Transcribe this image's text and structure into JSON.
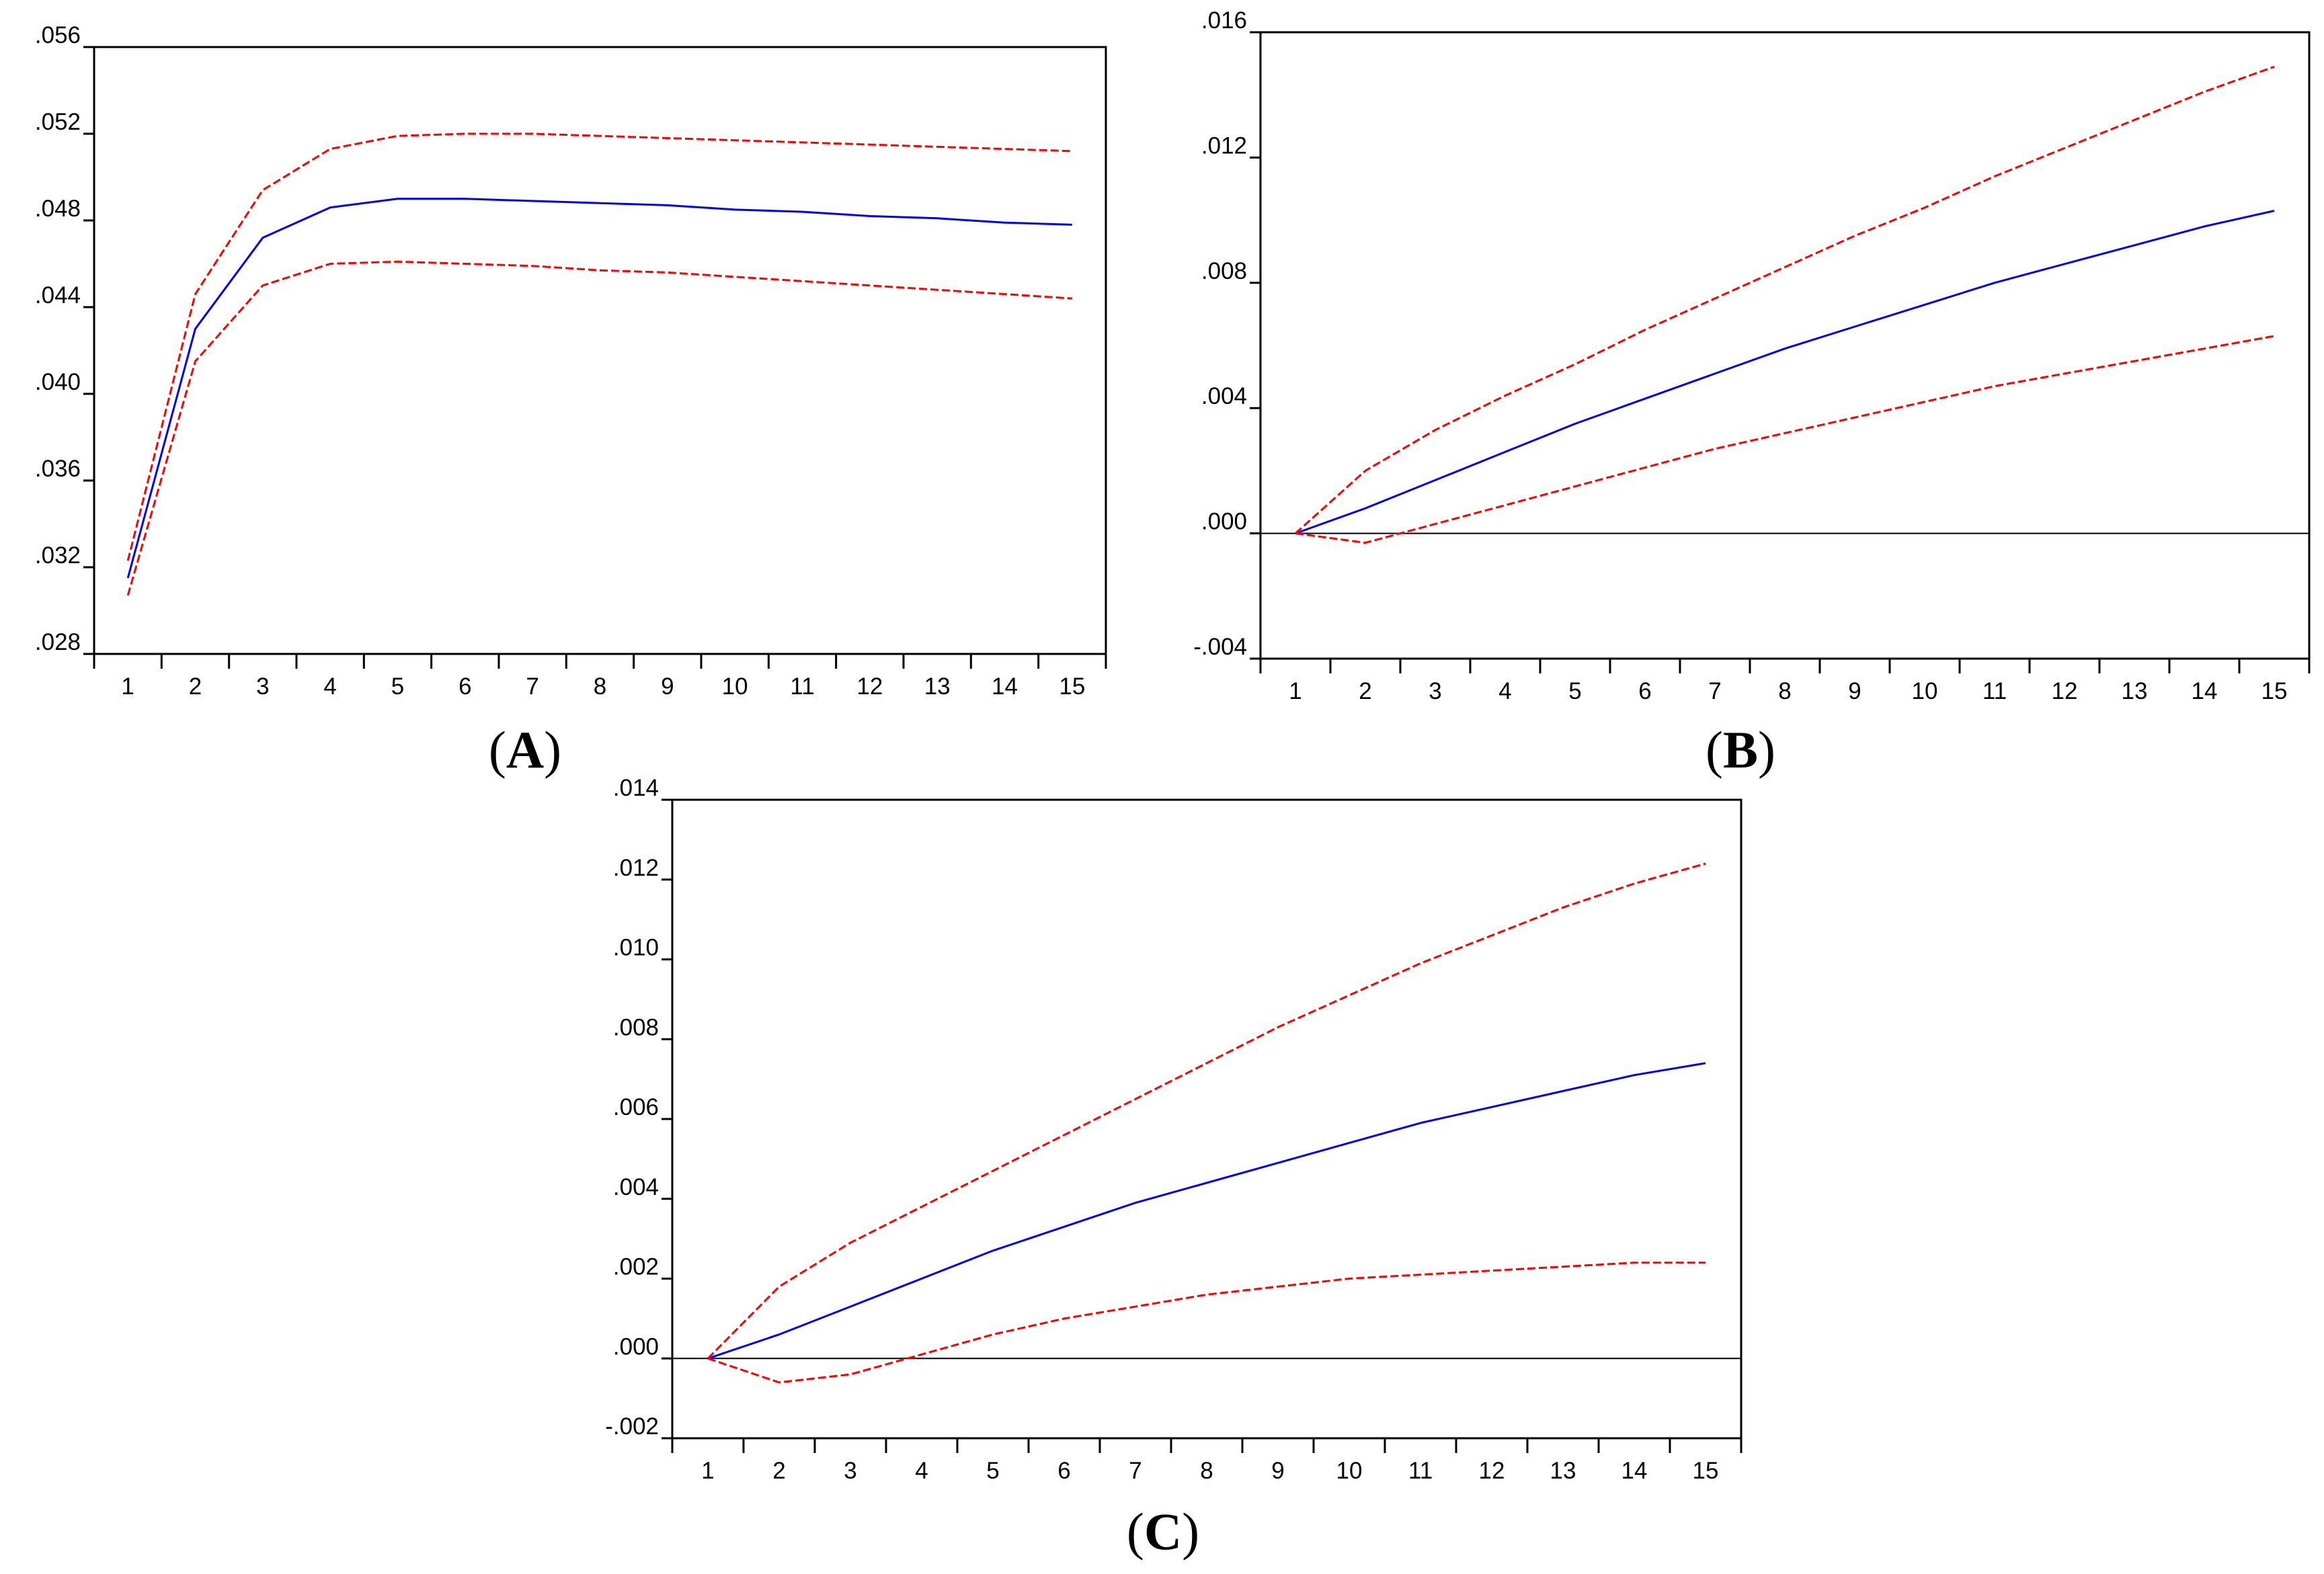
{
  "colors": {
    "response": "#0000ff",
    "band": "#ff0000",
    "axis": "#000000",
    "zero_line": "#000000"
  },
  "chart_data": [
    {
      "type": "line",
      "panel_label": "A",
      "title": "",
      "xlabel": "",
      "ylabel": "",
      "x": [
        1,
        2,
        3,
        4,
        5,
        6,
        7,
        8,
        9,
        10,
        11,
        12,
        13,
        14,
        15
      ],
      "xlim": [
        0.5,
        15.5
      ],
      "ylim": [
        0.028,
        0.056
      ],
      "yticks": [
        0.028,
        0.032,
        0.036,
        0.04,
        0.044,
        0.048,
        0.052,
        0.056
      ],
      "ytick_labels": [
        ".028",
        ".032",
        ".036",
        ".040",
        ".044",
        ".048",
        ".052",
        ".056"
      ],
      "zero_line": false,
      "series": [
        {
          "name": "response",
          "style": "solid",
          "values": [
            0.0315,
            0.043,
            0.0472,
            0.0486,
            0.049,
            0.049,
            0.0489,
            0.0488,
            0.0487,
            0.0485,
            0.0484,
            0.0482,
            0.0481,
            0.0479,
            0.0478
          ]
        },
        {
          "name": "upper",
          "style": "dashed",
          "values": [
            0.0323,
            0.0446,
            0.0494,
            0.0513,
            0.0519,
            0.052,
            0.052,
            0.0519,
            0.0518,
            0.0517,
            0.0516,
            0.0515,
            0.0514,
            0.0513,
            0.0512
          ]
        },
        {
          "name": "lower",
          "style": "dashed",
          "values": [
            0.0307,
            0.0415,
            0.045,
            0.046,
            0.0461,
            0.046,
            0.0459,
            0.0457,
            0.0456,
            0.0454,
            0.0452,
            0.045,
            0.0448,
            0.0446,
            0.0444
          ]
        }
      ]
    },
    {
      "type": "line",
      "panel_label": "B",
      "title": "",
      "xlabel": "",
      "ylabel": "",
      "x": [
        1,
        2,
        3,
        4,
        5,
        6,
        7,
        8,
        9,
        10,
        11,
        12,
        13,
        14,
        15
      ],
      "xlim": [
        0.5,
        15.5
      ],
      "ylim": [
        -0.004,
        0.016
      ],
      "yticks": [
        -0.004,
        0.0,
        0.004,
        0.008,
        0.012,
        0.016
      ],
      "ytick_labels": [
        "-.004",
        ".000",
        ".004",
        ".008",
        ".012",
        ".016"
      ],
      "zero_line": true,
      "series": [
        {
          "name": "response",
          "style": "solid",
          "values": [
            0.0,
            0.0008,
            0.0017,
            0.0026,
            0.0035,
            0.0043,
            0.0051,
            0.0059,
            0.0066,
            0.0073,
            0.008,
            0.0086,
            0.0092,
            0.0098,
            0.0103
          ]
        },
        {
          "name": "upper",
          "style": "dashed",
          "values": [
            0.0,
            0.002,
            0.0033,
            0.0044,
            0.0054,
            0.0065,
            0.0075,
            0.0085,
            0.0095,
            0.0104,
            0.0114,
            0.0123,
            0.0132,
            0.0141,
            0.0149
          ]
        },
        {
          "name": "lower",
          "style": "dashed",
          "values": [
            0.0,
            -0.0003,
            0.0003,
            0.0009,
            0.0015,
            0.0021,
            0.0027,
            0.0032,
            0.0037,
            0.0042,
            0.0047,
            0.0051,
            0.0055,
            0.0059,
            0.0063
          ]
        }
      ]
    },
    {
      "type": "line",
      "panel_label": "C",
      "title": "",
      "xlabel": "",
      "ylabel": "",
      "x": [
        1,
        2,
        3,
        4,
        5,
        6,
        7,
        8,
        9,
        10,
        11,
        12,
        13,
        14,
        15
      ],
      "xlim": [
        0.5,
        15.5
      ],
      "ylim": [
        -0.002,
        0.014
      ],
      "yticks": [
        -0.002,
        0.0,
        0.002,
        0.004,
        0.006,
        0.008,
        0.01,
        0.012,
        0.014
      ],
      "ytick_labels": [
        "-.002",
        ".000",
        ".002",
        ".004",
        ".006",
        ".008",
        ".010",
        ".012",
        ".014"
      ],
      "zero_line": true,
      "series": [
        {
          "name": "response",
          "style": "solid",
          "values": [
            0.0,
            0.0006,
            0.0013,
            0.002,
            0.0027,
            0.0033,
            0.0039,
            0.0044,
            0.0049,
            0.0054,
            0.0059,
            0.0063,
            0.0067,
            0.0071,
            0.0074
          ]
        },
        {
          "name": "upper",
          "style": "dashed",
          "values": [
            0.0,
            0.0018,
            0.0029,
            0.0038,
            0.0047,
            0.0056,
            0.0065,
            0.0074,
            0.0083,
            0.0091,
            0.0099,
            0.0106,
            0.0113,
            0.0119,
            0.0124
          ]
        },
        {
          "name": "lower",
          "style": "dashed",
          "values": [
            0.0,
            -0.0006,
            -0.0004,
            0.0001,
            0.0006,
            0.001,
            0.0013,
            0.0016,
            0.0018,
            0.002,
            0.0021,
            0.0022,
            0.0023,
            0.0024,
            0.0024
          ]
        }
      ]
    }
  ]
}
